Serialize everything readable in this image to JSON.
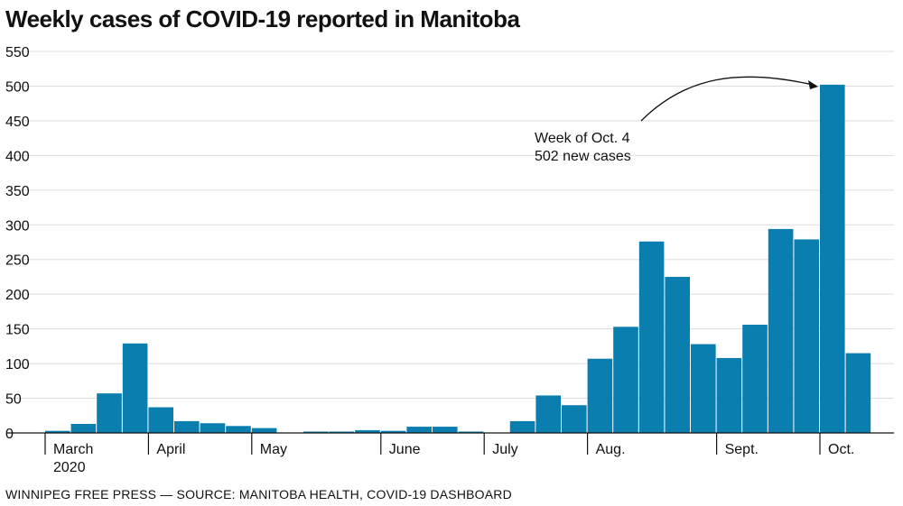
{
  "title": "Weekly cases of COVID-19 reported in Manitoba",
  "source": "WINNIPEG FREE PRESS — SOURCE: MANITOBA HEALTH, COVID-19 DASHBOARD",
  "colors": {
    "bar": "#0a7eaf",
    "grid": "#dddddd",
    "axis": "#111111"
  },
  "annotation": {
    "line1": "Week of Oct. 4",
    "line2": "502 new cases"
  },
  "chart_data": {
    "type": "bar",
    "title": "Weekly cases of COVID-19 reported in Manitoba",
    "xlabel": "",
    "ylabel": "",
    "ylim": [
      0,
      550
    ],
    "yticks": [
      0,
      50,
      100,
      150,
      200,
      250,
      300,
      350,
      400,
      450,
      500,
      550
    ],
    "grid": true,
    "month_labels": [
      {
        "label": "March",
        "sublabel": "2020",
        "week_index": 0
      },
      {
        "label": "April",
        "week_index": 4
      },
      {
        "label": "May",
        "week_index": 8
      },
      {
        "label": "June",
        "week_index": 13
      },
      {
        "label": "July",
        "week_index": 17
      },
      {
        "label": "Aug.",
        "week_index": 21
      },
      {
        "label": "Sept.",
        "week_index": 26
      },
      {
        "label": "Oct.",
        "week_index": 30
      }
    ],
    "values": [
      3,
      13,
      57,
      129,
      37,
      17,
      14,
      10,
      7,
      0,
      2,
      2,
      4,
      3,
      9,
      9,
      2,
      0,
      17,
      54,
      40,
      107,
      153,
      276,
      225,
      128,
      108,
      156,
      294,
      279,
      502,
      115
    ]
  }
}
